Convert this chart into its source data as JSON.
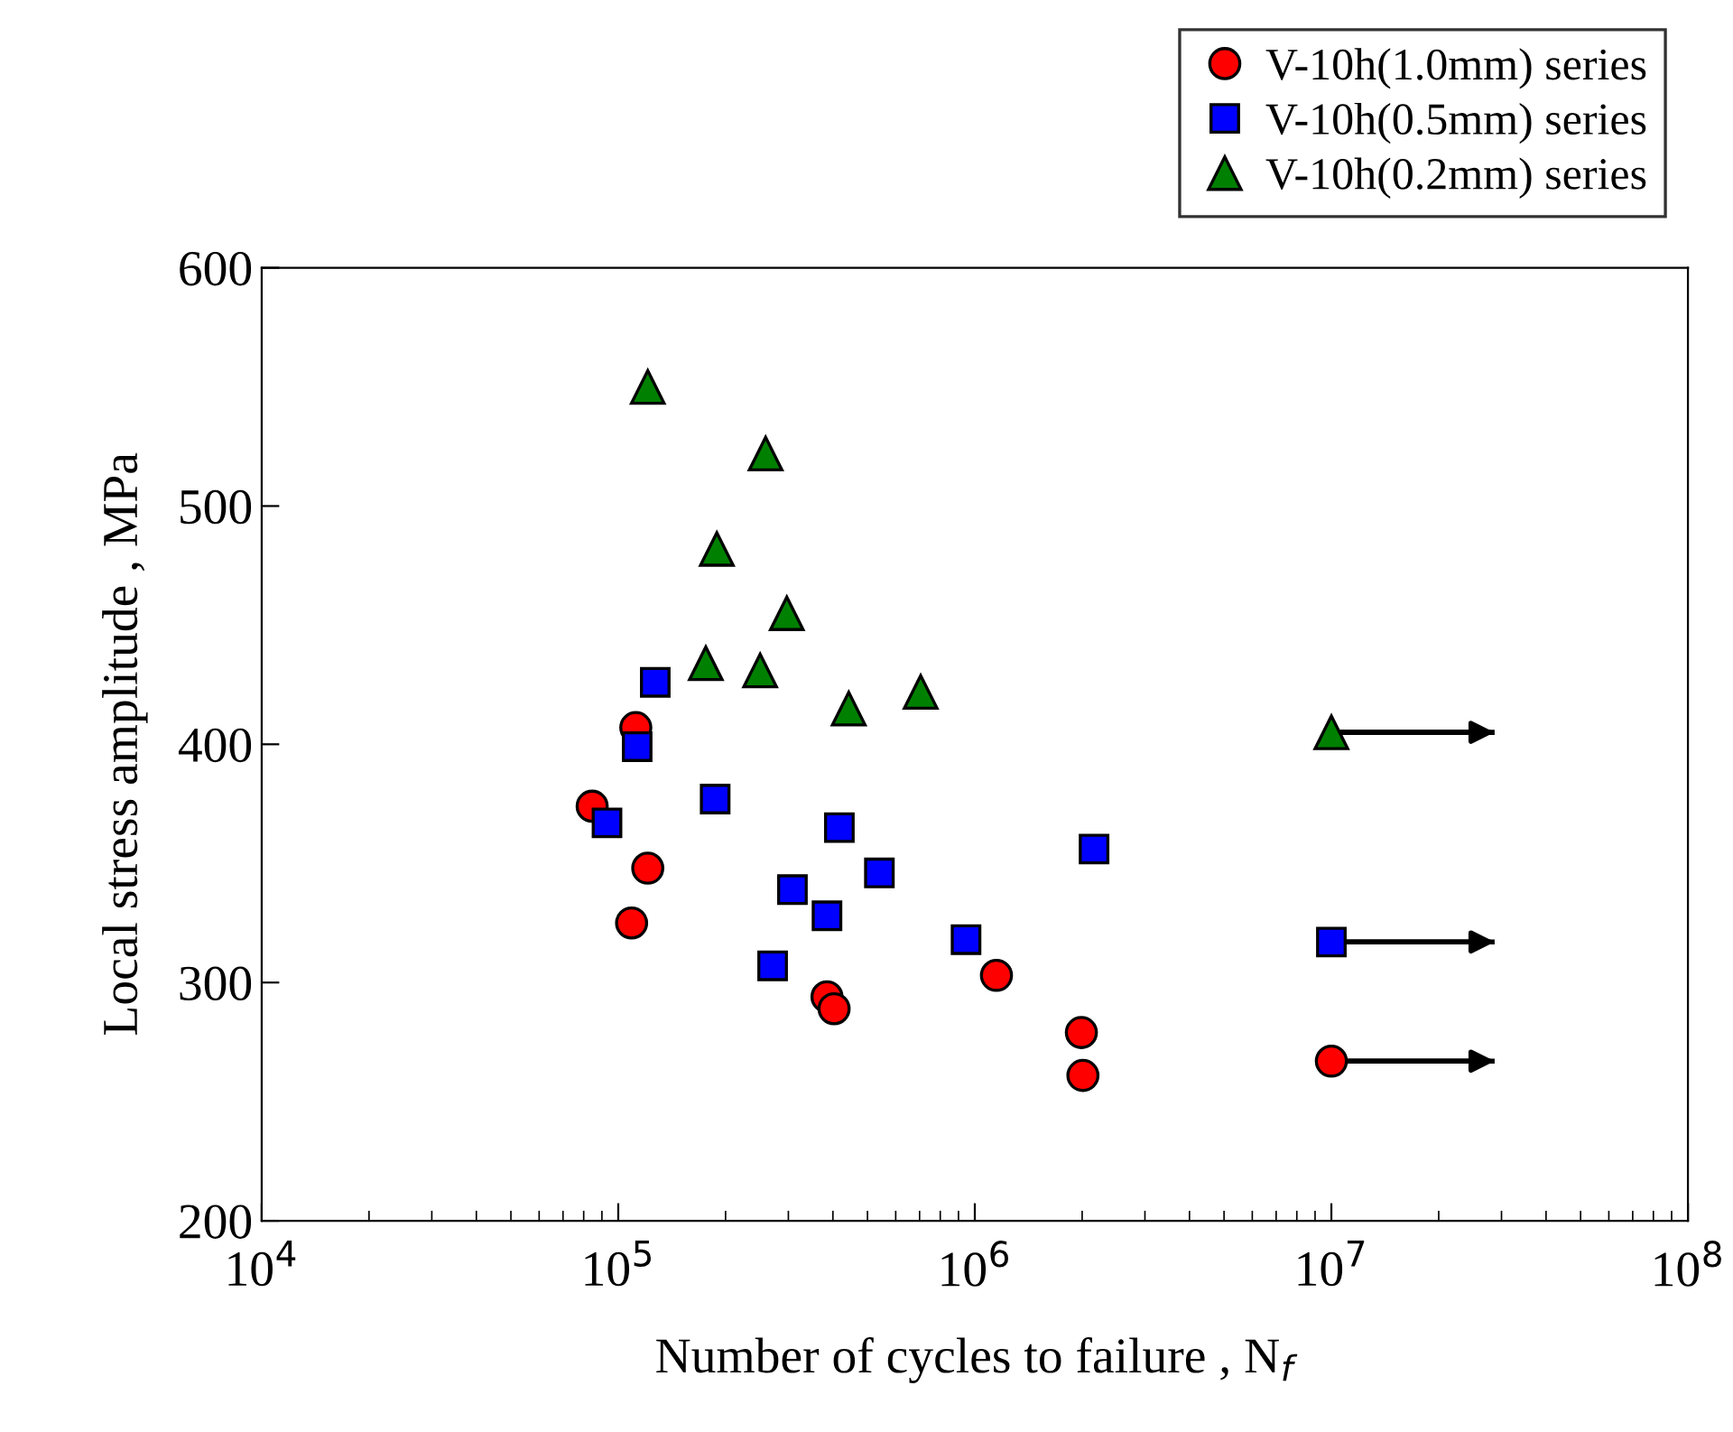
{
  "chart_data": {
    "type": "scatter",
    "xlabel": "Number of cycles to failure , N$_{f}$",
    "ylabel": "Local stress amplitude , MPa",
    "log": "x",
    "xlim": [
      10000,
      100000000
    ],
    "ylim": [
      200,
      600
    ],
    "xticks": [
      {
        "value": 10000,
        "label": "10$^{4}$"
      },
      {
        "value": 100000,
        "label": "10$^{5}$"
      },
      {
        "value": 1000000,
        "label": "10$^{6}$"
      },
      {
        "value": 10000000,
        "label": "10$^{7}$"
      },
      {
        "value": 100000000,
        "label": "10$^{8}$"
      }
    ],
    "yticks": [
      200,
      300,
      400,
      500,
      600
    ],
    "grid": false,
    "legend": "top right",
    "series": [
      {
        "name": "V-10h(1.0mm) series",
        "color": "#ff0000",
        "marker": "circle",
        "x": [
          84500,
          112000,
          121000,
          109000,
          385000,
          403000,
          1150000,
          1990000,
          2010000,
          10000000
        ],
        "values": [
          374,
          407,
          348,
          325,
          294,
          289,
          303,
          279,
          261,
          267
        ],
        "xerrors": [
          null,
          null,
          null,
          null,
          null,
          null,
          null,
          null,
          null,
          [
            10000000,
            28700000
          ]
        ]
      },
      {
        "name": "V-10h(0.5mm) series",
        "color": "#0000ff",
        "marker": "square",
        "x": [
          93000,
          113000,
          127000,
          187000,
          417000,
          308000,
          385000,
          540000,
          271000,
          945000,
          2160000,
          10000000
        ],
        "values": [
          367,
          399,
          426,
          377,
          365,
          339,
          328,
          346,
          307,
          318,
          356,
          317
        ],
        "xerrors": [
          null,
          null,
          null,
          null,
          null,
          null,
          null,
          null,
          null,
          null,
          null,
          [
            10000000,
            28700000
          ]
        ]
      },
      {
        "name": "V-10h(0.2mm) series",
        "color": "#008000",
        "marker": "triangle",
        "x": [
          121000,
          259000,
          189000,
          297000,
          176000,
          250000,
          443000,
          705000,
          10000000
        ],
        "values": [
          550,
          522,
          482,
          455,
          434,
          431,
          415,
          422,
          405
        ],
        "xerrors": [
          null,
          null,
          null,
          null,
          null,
          null,
          null,
          null,
          [
            10000000,
            28700000
          ]
        ]
      }
    ]
  }
}
